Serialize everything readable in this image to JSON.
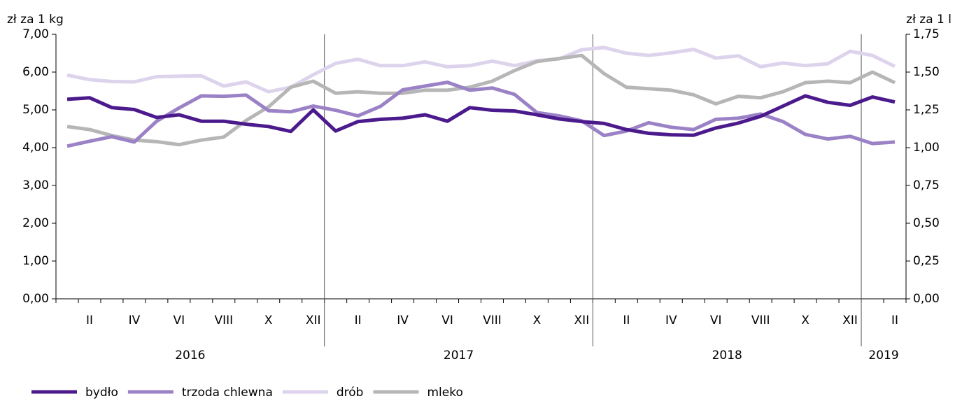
{
  "chart_data": {
    "type": "line",
    "y_label": "zł za 1 kg",
    "y2_label": "zł za 1 l",
    "categories": [
      null,
      "II",
      null,
      "IV",
      null,
      "VI",
      null,
      "VIII",
      null,
      "X",
      null,
      "XII",
      null,
      "II",
      null,
      "IV",
      null,
      "VI",
      null,
      "VIII",
      null,
      "X",
      null,
      "XII",
      null,
      "II",
      null,
      "IV",
      null,
      "VI",
      null,
      "VIII",
      null,
      "X",
      null,
      "XII",
      null,
      "II"
    ],
    "years": [
      "2016",
      "2017",
      "2018",
      "2019"
    ],
    "ylim": [
      0,
      7
    ],
    "yticks": [
      {
        "value": 0,
        "label": "0,00"
      },
      {
        "value": 1,
        "label": "1,00"
      },
      {
        "value": 2,
        "label": "2,00"
      },
      {
        "value": 3,
        "label": "3,00"
      },
      {
        "value": 4,
        "label": "4,00"
      },
      {
        "value": 5,
        "label": "5,00"
      },
      {
        "value": 6,
        "label": "6,00"
      },
      {
        "value": 7,
        "label": "7,00"
      }
    ],
    "y2lim": [
      0,
      1.75
    ],
    "y2ticks": [
      {
        "value": 0,
        "label": "0,00"
      },
      {
        "value": 0.25,
        "label": "0,25"
      },
      {
        "value": 0.5,
        "label": "0,50"
      },
      {
        "value": 0.75,
        "label": "0,75"
      },
      {
        "value": 1,
        "label": "1,00"
      },
      {
        "value": 1.25,
        "label": "1,25"
      },
      {
        "value": 1.5,
        "label": "1,50"
      },
      {
        "value": 1.75,
        "label": "1,75"
      }
    ],
    "series": [
      {
        "name": "bydło",
        "color": "#4b1a8c",
        "values": [
          5.28,
          5.32,
          5.06,
          5.01,
          4.8,
          4.87,
          4.7,
          4.7,
          4.62,
          4.56,
          4.43,
          5.0,
          4.44,
          4.69,
          4.75,
          4.78,
          4.87,
          4.7,
          5.06,
          4.99,
          4.97,
          4.87,
          4.76,
          4.69,
          4.64,
          4.48,
          4.38,
          4.34,
          4.33,
          4.52,
          4.65,
          4.83,
          5.1,
          5.37,
          5.2,
          5.12,
          5.34,
          5.21
        ]
      },
      {
        "name": "trzoda chlewna",
        "color": "#9b82c6",
        "values": [
          4.04,
          4.17,
          4.29,
          4.15,
          4.7,
          5.05,
          5.37,
          5.36,
          5.39,
          4.98,
          4.95,
          5.1,
          4.99,
          4.84,
          5.09,
          5.53,
          5.63,
          5.73,
          5.52,
          5.58,
          5.41,
          4.93,
          4.84,
          4.71,
          4.32,
          4.44,
          4.66,
          4.54,
          4.48,
          4.75,
          4.78,
          4.89,
          4.69,
          4.35,
          4.23,
          4.3,
          4.11,
          4.15
        ]
      },
      {
        "name": "drób",
        "color": "#ddd3ec",
        "values": [
          5.92,
          5.8,
          5.75,
          5.74,
          5.88,
          5.89,
          5.9,
          5.63,
          5.74,
          5.48,
          5.6,
          5.93,
          6.23,
          6.34,
          6.17,
          6.17,
          6.27,
          6.14,
          6.17,
          6.29,
          6.17,
          6.3,
          6.35,
          6.59,
          6.65,
          6.5,
          6.44,
          6.51,
          6.6,
          6.37,
          6.43,
          6.14,
          6.24,
          6.17,
          6.22,
          6.55,
          6.44,
          6.15
        ]
      },
      {
        "name": "mleko",
        "color": "#b6b6b6",
        "axis": "y2",
        "values": [
          1.14,
          1.12,
          1.08,
          1.05,
          1.04,
          1.02,
          1.05,
          1.07,
          1.18,
          1.27,
          1.4,
          1.44,
          1.36,
          1.37,
          1.36,
          1.36,
          1.38,
          1.38,
          1.4,
          1.44,
          1.51,
          1.57,
          1.59,
          1.61,
          1.49,
          1.4,
          1.39,
          1.38,
          1.35,
          1.29,
          1.34,
          1.33,
          1.37,
          1.43,
          1.44,
          1.43,
          1.5,
          1.43
        ]
      }
    ]
  }
}
